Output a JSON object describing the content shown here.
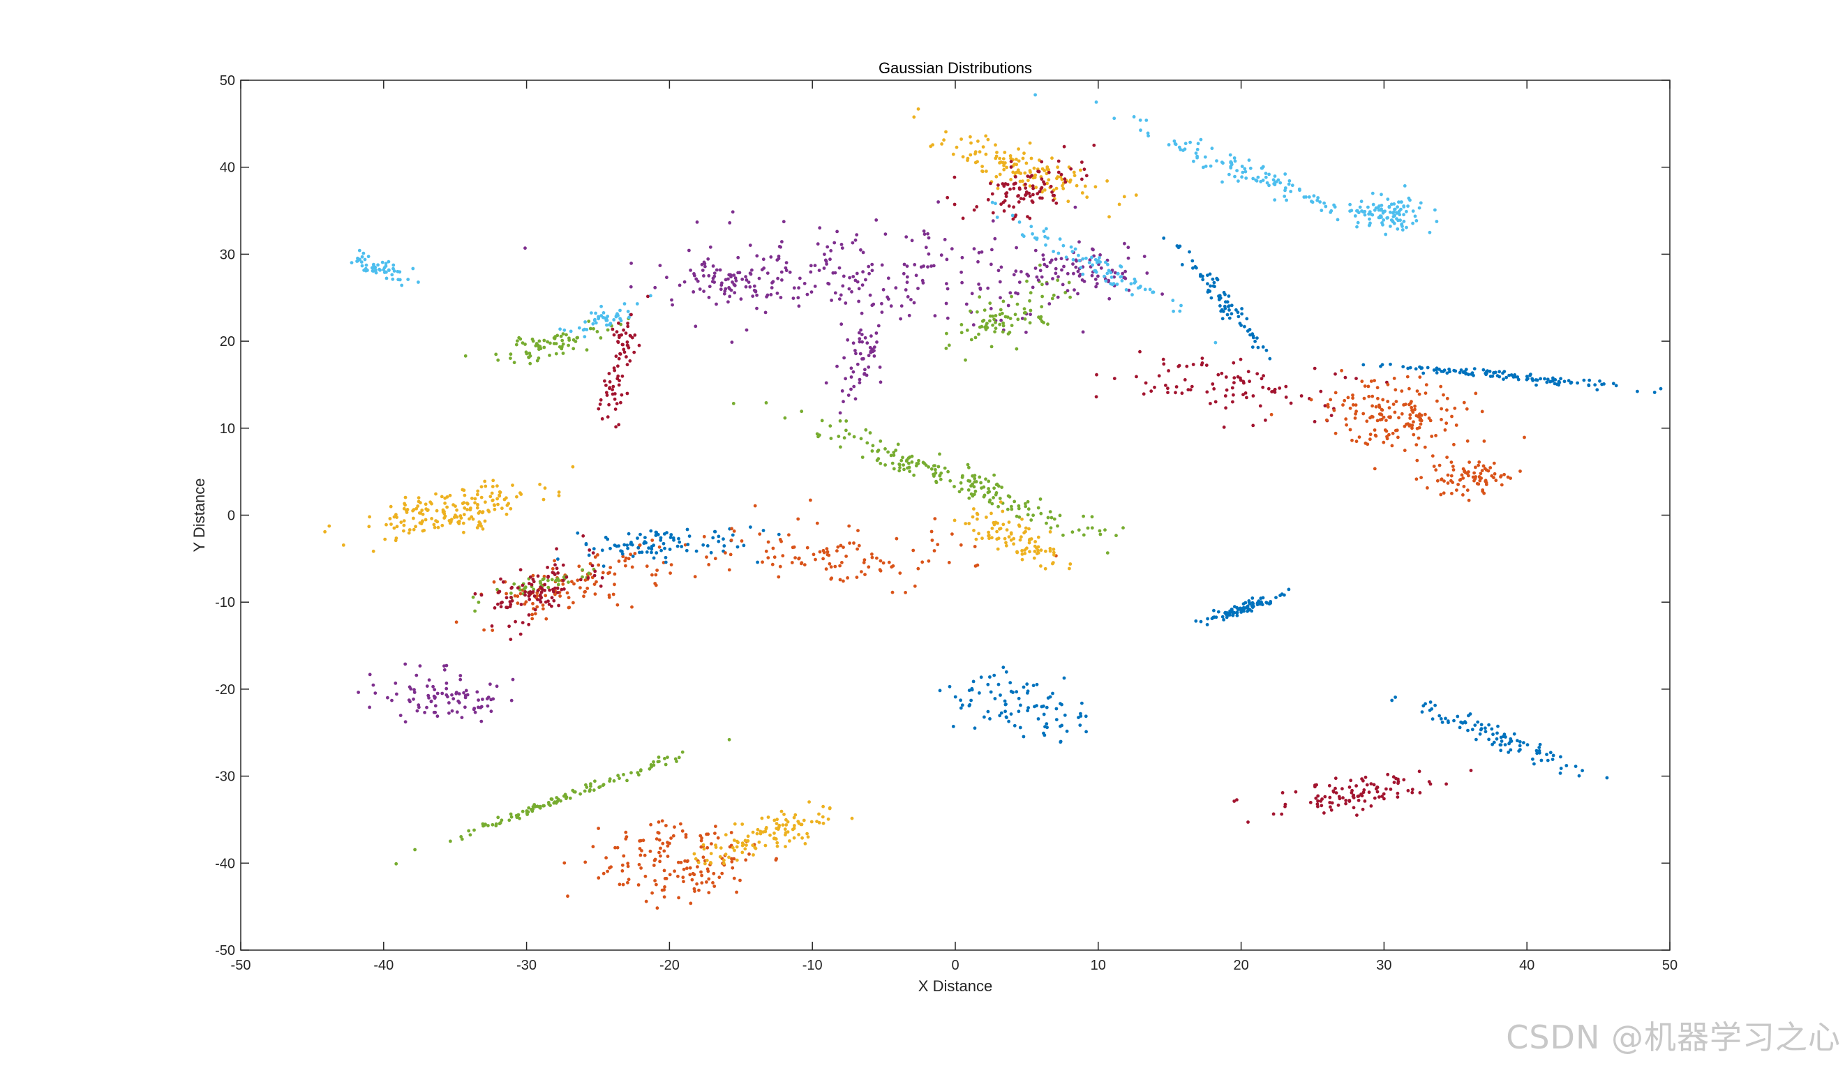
{
  "chart_data": {
    "type": "scatter",
    "title": "Gaussian Distributions",
    "xlabel": "X Distance",
    "ylabel": "Y Distance",
    "xlim": [
      -50,
      50
    ],
    "ylim": [
      -50,
      50
    ],
    "xticks": [
      -50,
      -40,
      -30,
      -20,
      -10,
      0,
      10,
      20,
      30,
      40,
      50
    ],
    "yticks": [
      -50,
      -40,
      -30,
      -20,
      -10,
      0,
      10,
      20,
      30,
      40,
      50
    ],
    "grid": false,
    "legend": "none",
    "colors": {
      "blue": "#0072BD",
      "orange": "#D95319",
      "yellow": "#EDB120",
      "purple": "#7E2F8E",
      "green": "#77AC30",
      "cyan": "#4DBEEE",
      "red": "#A2142F"
    },
    "clusters": [
      {
        "color": "cyan",
        "center": [
          -40.5,
          28.5
        ],
        "n": 55,
        "spread_major": 1.4,
        "spread_minor": 0.55,
        "angle_deg": -35
      },
      {
        "color": "yellow",
        "center": [
          -35.5,
          0.5
        ],
        "n": 170,
        "spread_major": 3.4,
        "spread_minor": 1.1,
        "angle_deg": 22
      },
      {
        "color": "purple",
        "center": [
          -36,
          -21
        ],
        "n": 90,
        "spread_major": 2.3,
        "spread_minor": 1.4,
        "angle_deg": 0
      },
      {
        "color": "green",
        "center": [
          -28.5,
          19.5
        ],
        "n": 70,
        "spread_major": 2.2,
        "spread_minor": 0.8,
        "angle_deg": 25
      },
      {
        "color": "cyan",
        "center": [
          -24.5,
          22.5
        ],
        "n": 45,
        "spread_major": 1.8,
        "spread_minor": 0.6,
        "angle_deg": 30
      },
      {
        "color": "red",
        "center": [
          -23.5,
          17.5
        ],
        "n": 70,
        "spread_major": 3.3,
        "spread_minor": 0.45,
        "angle_deg": 82
      },
      {
        "color": "orange",
        "center": [
          -27,
          -8
        ],
        "n": 110,
        "spread_major": 4.0,
        "spread_minor": 1.5,
        "angle_deg": 28
      },
      {
        "color": "green",
        "center": [
          -29,
          -8
        ],
        "n": 40,
        "spread_major": 2.4,
        "spread_minor": 0.45,
        "angle_deg": 24
      },
      {
        "color": "red",
        "center": [
          -29,
          -8.5
        ],
        "n": 100,
        "spread_major": 2.6,
        "spread_minor": 1.1,
        "angle_deg": 45
      },
      {
        "color": "blue",
        "center": [
          -21,
          -3.5
        ],
        "n": 90,
        "spread_major": 3.0,
        "spread_minor": 1.1,
        "angle_deg": 5
      },
      {
        "color": "orange",
        "center": [
          -9,
          -4.5
        ],
        "n": 110,
        "spread_major": 5.0,
        "spread_minor": 2.0,
        "angle_deg": 0
      },
      {
        "color": "purple",
        "center": [
          -16,
          26.5
        ],
        "n": 60,
        "spread_major": 1.6,
        "spread_minor": 1.1,
        "angle_deg": 0
      },
      {
        "color": "purple",
        "center": [
          -5,
          27.5
        ],
        "n": 230,
        "spread_major": 8.0,
        "spread_minor": 3.0,
        "angle_deg": 0
      },
      {
        "color": "purple",
        "center": [
          -6.5,
          18.5
        ],
        "n": 55,
        "spread_major": 3.0,
        "spread_minor": 0.8,
        "angle_deg": 80
      },
      {
        "color": "green",
        "center": [
          0,
          4
        ],
        "n": 180,
        "spread_major": 6.5,
        "spread_minor": 0.8,
        "angle_deg": -33
      },
      {
        "color": "yellow",
        "center": [
          4.5,
          -3
        ],
        "n": 90,
        "spread_major": 2.5,
        "spread_minor": 0.8,
        "angle_deg": -40
      },
      {
        "color": "green",
        "center": [
          3.5,
          22.5
        ],
        "n": 80,
        "spread_major": 2.6,
        "spread_minor": 1.3,
        "angle_deg": 50
      },
      {
        "color": "yellow",
        "center": [
          4.5,
          40
        ],
        "n": 130,
        "spread_major": 3.5,
        "spread_minor": 1.0,
        "angle_deg": -30
      },
      {
        "color": "red",
        "center": [
          5,
          37.5
        ],
        "n": 90,
        "spread_major": 2.2,
        "spread_minor": 1.3,
        "angle_deg": 45
      },
      {
        "color": "purple",
        "center": [
          8.5,
          28
        ],
        "n": 70,
        "spread_major": 2.3,
        "spread_minor": 1.3,
        "angle_deg": 0
      },
      {
        "color": "cyan",
        "center": [
          10,
          28.5
        ],
        "n": 80,
        "spread_major": 4.5,
        "spread_minor": 0.6,
        "angle_deg": -42
      },
      {
        "color": "cyan",
        "center": [
          21,
          39
        ],
        "n": 110,
        "spread_major": 5.2,
        "spread_minor": 0.6,
        "angle_deg": -33
      },
      {
        "color": "cyan",
        "center": [
          30.5,
          34.5
        ],
        "n": 100,
        "spread_major": 1.4,
        "spread_minor": 1.0,
        "angle_deg": 0
      },
      {
        "color": "blue",
        "center": [
          19,
          24
        ],
        "n": 75,
        "spread_major": 3.3,
        "spread_minor": 0.35,
        "angle_deg": -65
      },
      {
        "color": "red",
        "center": [
          19,
          15
        ],
        "n": 90,
        "spread_major": 4.0,
        "spread_minor": 1.6,
        "angle_deg": -8
      },
      {
        "color": "blue",
        "center": [
          38.5,
          16
        ],
        "n": 110,
        "spread_major": 4.4,
        "spread_minor": 0.25,
        "angle_deg": -9
      },
      {
        "color": "orange",
        "center": [
          31,
          11.5
        ],
        "n": 160,
        "spread_major": 2.6,
        "spread_minor": 2.0,
        "angle_deg": 0
      },
      {
        "color": "orange",
        "center": [
          36,
          4.5
        ],
        "n": 80,
        "spread_major": 1.5,
        "spread_minor": 1.0,
        "angle_deg": 0
      },
      {
        "color": "blue",
        "center": [
          20.5,
          -10.5
        ],
        "n": 90,
        "spread_major": 1.5,
        "spread_minor": 0.25,
        "angle_deg": 30
      },
      {
        "color": "blue",
        "center": [
          4.5,
          -22
        ],
        "n": 90,
        "spread_major": 2.8,
        "spread_minor": 1.6,
        "angle_deg": -10
      },
      {
        "color": "blue",
        "center": [
          37,
          -25
        ],
        "n": 90,
        "spread_major": 4.4,
        "spread_minor": 0.5,
        "angle_deg": -33
      },
      {
        "color": "red",
        "center": [
          28,
          -32
        ],
        "n": 100,
        "spread_major": 3.0,
        "spread_minor": 0.9,
        "angle_deg": 15
      },
      {
        "color": "green",
        "center": [
          -26.5,
          -32
        ],
        "n": 110,
        "spread_major": 5.0,
        "spread_minor": 0.25,
        "angle_deg": 31
      },
      {
        "color": "orange",
        "center": [
          -19.5,
          -40
        ],
        "n": 150,
        "spread_major": 3.0,
        "spread_minor": 2.6,
        "angle_deg": 0
      },
      {
        "color": "yellow",
        "center": [
          -13.5,
          -37
        ],
        "n": 110,
        "spread_major": 3.0,
        "spread_minor": 0.9,
        "angle_deg": 32
      }
    ]
  },
  "watermark": "CSDN @机器学习之心"
}
